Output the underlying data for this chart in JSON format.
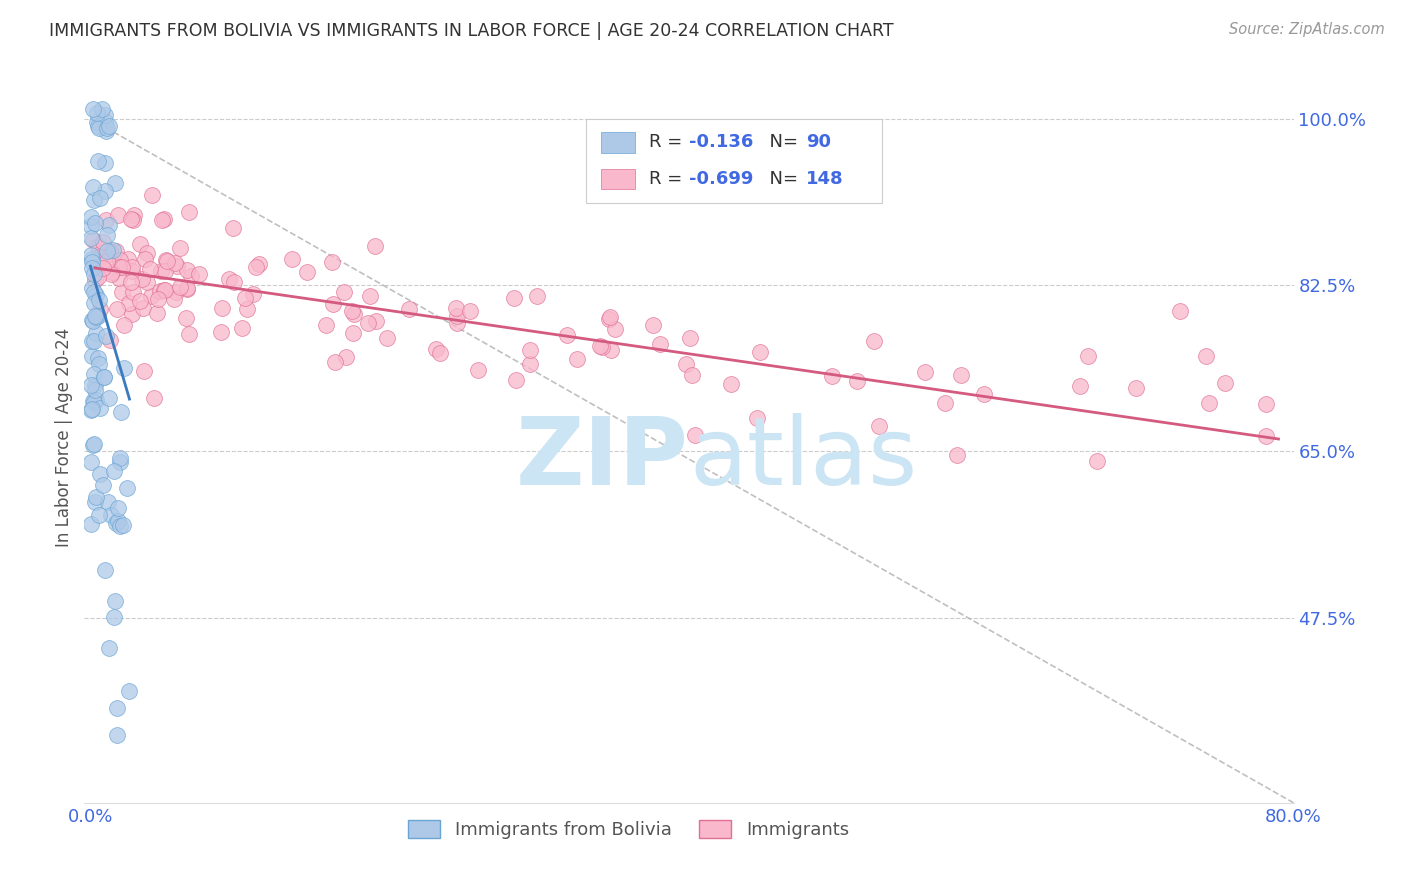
{
  "title": "IMMIGRANTS FROM BOLIVIA VS IMMIGRANTS IN LABOR FORCE | AGE 20-24 CORRELATION CHART",
  "source": "Source: ZipAtlas.com",
  "ylabel": "In Labor Force | Age 20-24",
  "legend_label1": "Immigrants from Bolivia",
  "legend_label2": "Immigrants",
  "R1": -0.136,
  "N1": 90,
  "R2": -0.699,
  "N2": 148,
  "xlim": [
    -0.004,
    0.8
  ],
  "ylim": [
    0.28,
    1.05
  ],
  "yticks": [
    0.475,
    0.65,
    0.825,
    1.0
  ],
  "ytick_labels": [
    "47.5%",
    "65.0%",
    "82.5%",
    "100.0%"
  ],
  "color_blue": "#aec9e8",
  "color_pink": "#f9b8cc",
  "color_edge_blue": "#6aa5d4",
  "color_edge_pink": "#e07095",
  "color_line_blue": "#3a7abf",
  "color_line_pink": "#d45a80",
  "color_axis_ticks": "#4169E1",
  "watermark_color": "#cce5f5",
  "seed": 1234
}
